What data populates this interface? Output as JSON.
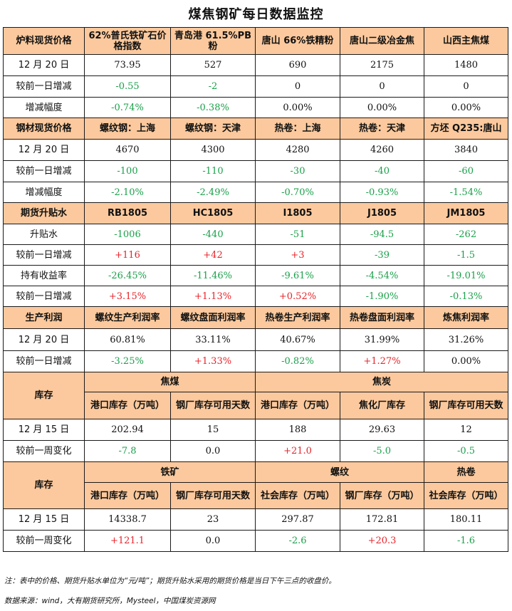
{
  "title": "煤焦钢矿每日数据监控",
  "colors": {
    "header_bg": "#fbc99d",
    "down": "#1aa04a",
    "up": "#e8232a"
  },
  "s1": {
    "h": [
      "炉料现货价格",
      "62%普氏铁矿石价格指数",
      "青岛港 61.5%PB粉",
      "唐山 66%铁精粉",
      "唐山二级冶金焦",
      "山西主焦煤"
    ],
    "rows": [
      [
        "12 月 20 日",
        "73.95",
        "527",
        "690",
        "2175",
        "1480"
      ],
      [
        "较前一日增减",
        "-0.55",
        "-2",
        "0",
        "0",
        "0"
      ],
      [
        "增减幅度",
        "-0.74%",
        "-0.38%",
        "0.00%",
        "0.00%",
        "0.00%"
      ]
    ]
  },
  "s2": {
    "h": [
      "钢材现货价格",
      "螺纹钢：上海",
      "螺纹钢：天津",
      "热卷：上海",
      "热卷：天津",
      "方坯 Q235:唐山"
    ],
    "rows": [
      [
        "12 月 20 日",
        "4670",
        "4300",
        "4280",
        "4260",
        "3840"
      ],
      [
        "较前一日增减",
        "-100",
        "-110",
        "-30",
        "-40",
        "-60"
      ],
      [
        "增减幅度",
        "-2.10%",
        "-2.49%",
        "-0.70%",
        "-0.93%",
        "-1.54%"
      ]
    ]
  },
  "s3": {
    "h": [
      "期货升贴水",
      "RB1805",
      "HC1805",
      "I1805",
      "J1805",
      "JM1805"
    ],
    "rows": [
      [
        "升贴水",
        "-1006",
        "-440",
        "-51",
        "-94.5",
        "-262"
      ],
      [
        "较前一日增减",
        "+116",
        "+42",
        "+3",
        "-39",
        "-1.5"
      ],
      [
        "持有收益率",
        "-26.45%",
        "-11.46%",
        "-9.61%",
        "-4.54%",
        "-19.01%"
      ],
      [
        "较前一日增减",
        "+3.15%",
        "+1.13%",
        "+0.52%",
        "-1.90%",
        "-0.13%"
      ]
    ]
  },
  "s4": {
    "h": [
      "生产利润",
      "螺纹生产利润率",
      "螺纹盘面利润率",
      "热卷生产利润率",
      "热卷盘面利润率",
      "炼焦利润率"
    ],
    "rows": [
      [
        "12 月 20 日",
        "60.81%",
        "33.11%",
        "40.67%",
        "31.99%",
        "31.26%"
      ],
      [
        "较前一日增减",
        "-3.25%",
        "+1.33%",
        "-0.82%",
        "+1.27%",
        "0.00%"
      ]
    ]
  },
  "s5": {
    "label": "库存",
    "g1": "焦煤",
    "g2": "焦炭",
    "sub": [
      "港口库存（万吨）",
      "钢厂库存可用天数",
      "港口库存（万吨）",
      "焦化厂库存",
      "钢厂库存可用天数"
    ],
    "rows": [
      [
        "12 月 15 日",
        "202.94",
        "15",
        "188",
        "29.63",
        "12"
      ],
      [
        "较前一周变化",
        "-7.8",
        "0.0",
        "+21.0",
        "-5.0",
        "-0.5"
      ]
    ]
  },
  "s6": {
    "label": "库存",
    "g1": "铁矿",
    "g2": "螺纹",
    "g3": "热卷",
    "sub": [
      "港口库存（万吨）",
      "钢厂库存可用天数",
      "社会库存（万吨）",
      "钢厂库存（万吨）",
      "社会库存（万吨）"
    ],
    "rows": [
      [
        "12 月 15 日",
        "14338.7",
        "23",
        "297.87",
        "172.81",
        "180.11"
      ],
      [
        "较前一周变化",
        "+121.1",
        "0.0",
        "-2.6",
        "+20.3",
        "-1.6"
      ]
    ]
  },
  "note": "注：表中的价格、期货升贴水单位为“元/吨”；期货升贴水采用的期货价格是当日下午三点的收盘价。",
  "source": "数据来源：wind，大有期货研究所，Mysteel，中国煤炭资源网"
}
